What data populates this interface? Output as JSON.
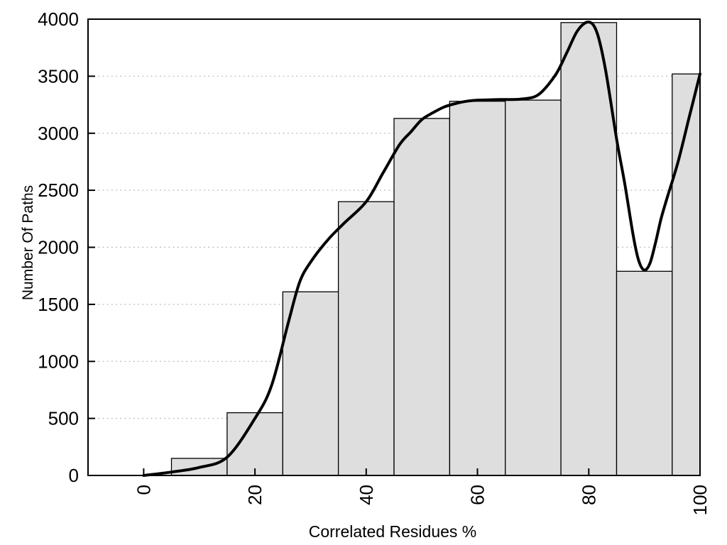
{
  "chart_data": {
    "type": "bar",
    "subtype": "histogram-with-smooth-curve-overlay",
    "title": "",
    "xlabel": "Correlated Residues %",
    "ylabel": "Number Of Paths",
    "xlim": [
      -10,
      100
    ],
    "ylim": [
      0,
      4000
    ],
    "x_ticks": [
      0,
      20,
      40,
      60,
      80,
      100
    ],
    "y_ticks": [
      0,
      500,
      1000,
      1500,
      2000,
      2500,
      3000,
      3500,
      4000
    ],
    "x_tick_rotation_deg": -90,
    "grid": {
      "horizontal": true,
      "vertical": false,
      "style": "dotted"
    },
    "legend_position": "none",
    "bars": [
      {
        "from": 5,
        "to": 15,
        "value": 150
      },
      {
        "from": 15,
        "to": 25,
        "value": 550
      },
      {
        "from": 25,
        "to": 35,
        "value": 1610
      },
      {
        "from": 35,
        "to": 45,
        "value": 2400
      },
      {
        "from": 45,
        "to": 55,
        "value": 3130
      },
      {
        "from": 55,
        "to": 65,
        "value": 3280
      },
      {
        "from": 65,
        "to": 75,
        "value": 3290
      },
      {
        "from": 75,
        "to": 85,
        "value": 3970
      },
      {
        "from": 85,
        "to": 95,
        "value": 1790
      },
      {
        "from": 95,
        "to": 100,
        "value": 3520
      }
    ],
    "curve_points": [
      [
        0,
        0
      ],
      [
        5,
        30
      ],
      [
        10,
        70
      ],
      [
        15,
        160
      ],
      [
        20,
        500
      ],
      [
        23,
        790
      ],
      [
        26,
        1340
      ],
      [
        28,
        1690
      ],
      [
        30,
        1870
      ],
      [
        33,
        2060
      ],
      [
        36,
        2210
      ],
      [
        40,
        2400
      ],
      [
        43,
        2650
      ],
      [
        46,
        2900
      ],
      [
        48,
        3010
      ],
      [
        50,
        3120
      ],
      [
        52,
        3180
      ],
      [
        54,
        3230
      ],
      [
        56,
        3260
      ],
      [
        58,
        3280
      ],
      [
        60,
        3290
      ],
      [
        64,
        3295
      ],
      [
        68,
        3300
      ],
      [
        71,
        3340
      ],
      [
        74,
        3510
      ],
      [
        76,
        3700
      ],
      [
        78,
        3900
      ],
      [
        80,
        3975
      ],
      [
        81.5,
        3880
      ],
      [
        83,
        3560
      ],
      [
        85,
        2950
      ],
      [
        86.5,
        2550
      ],
      [
        88,
        2100
      ],
      [
        89,
        1880
      ],
      [
        90,
        1800
      ],
      [
        91,
        1860
      ],
      [
        92,
        2040
      ],
      [
        93,
        2250
      ],
      [
        94,
        2420
      ],
      [
        96,
        2740
      ],
      [
        98,
        3130
      ],
      [
        100,
        3520
      ]
    ],
    "colors": {
      "background": "#ffffff",
      "bar_fill": "#dedede",
      "bar_border": "#000000",
      "curve": "#000000",
      "grid": "#b5b5b5",
      "axis": "#000000",
      "text": "#000000"
    }
  }
}
